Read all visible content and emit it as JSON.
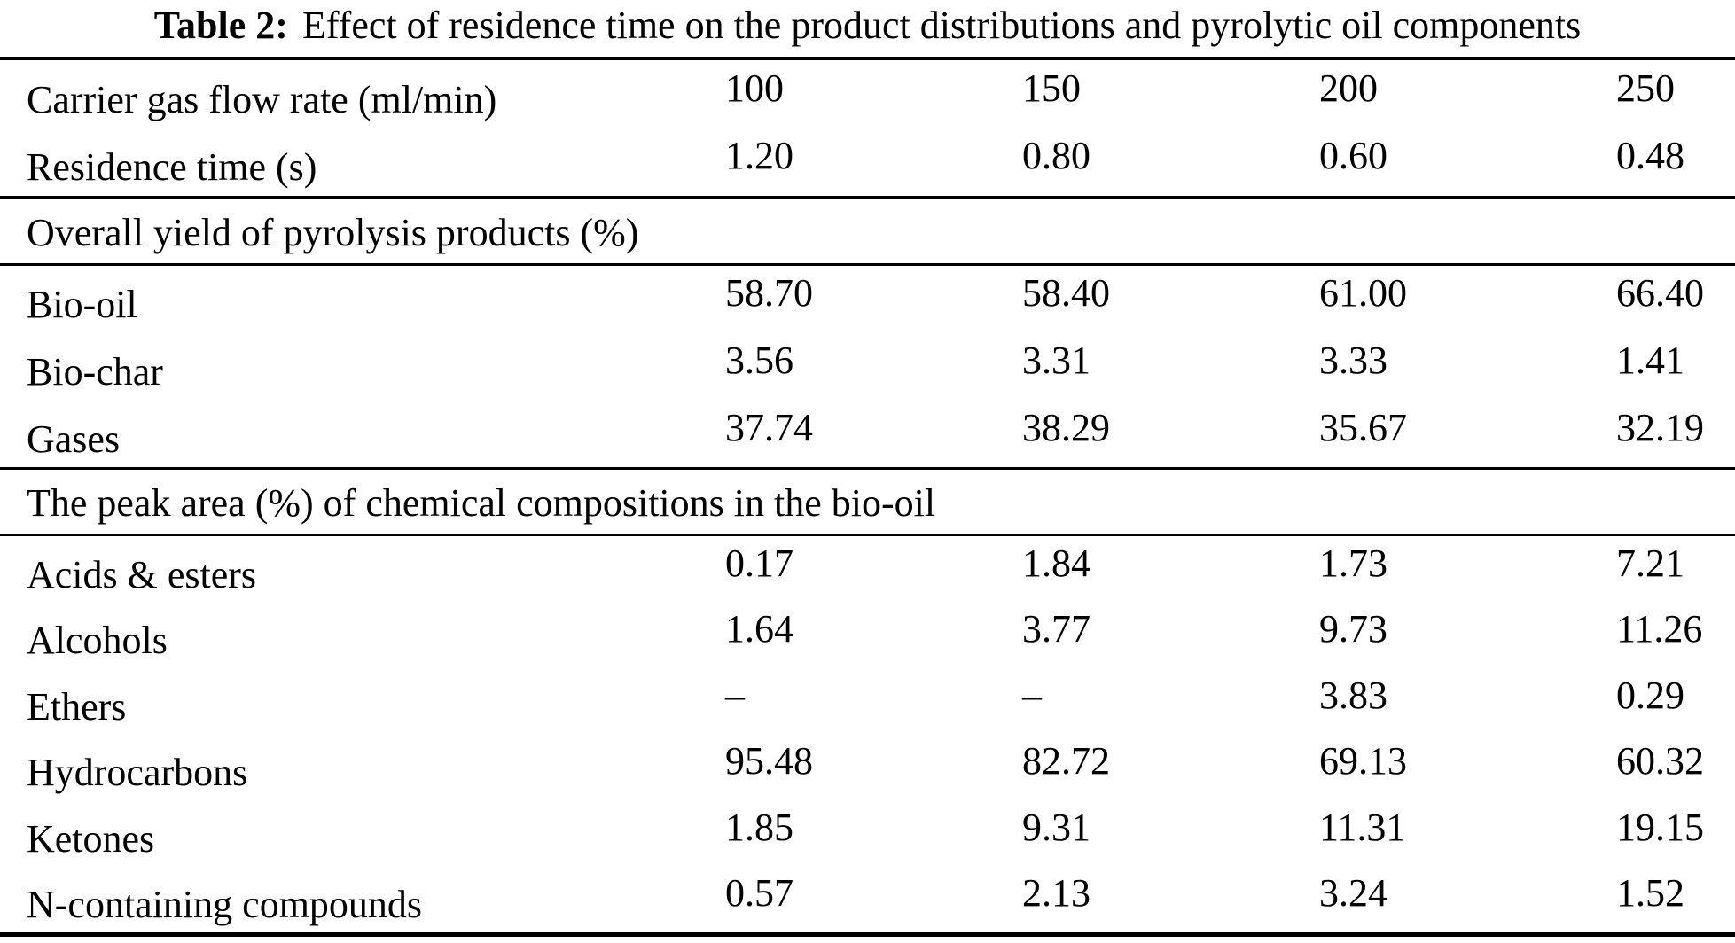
{
  "caption": {
    "label": "Table 2:",
    "text": "Effect of residence time on the product distributions and pyrolytic oil components"
  },
  "table": {
    "sections": [
      {
        "rows": [
          {
            "label": "Carrier gas flow rate (ml/min)",
            "values": [
              "100",
              "150",
              "200",
              "250"
            ]
          },
          {
            "label": "Residence time (s)",
            "values": [
              "1.20",
              "0.80",
              "0.60",
              "0.48"
            ]
          }
        ]
      },
      {
        "header": "Overall yield of pyrolysis products (%)",
        "rows": [
          {
            "label": "Bio-oil",
            "values": [
              "58.70",
              "58.40",
              "61.00",
              "66.40"
            ]
          },
          {
            "label": "Bio-char",
            "values": [
              "3.56",
              "3.31",
              "3.33",
              "1.41"
            ]
          },
          {
            "label": "Gases",
            "values": [
              "37.74",
              "38.29",
              "35.67",
              "32.19"
            ]
          }
        ]
      },
      {
        "header": "The peak area (%) of chemical compositions in the bio-oil",
        "rows": [
          {
            "label": "Acids & esters",
            "values": [
              "0.17",
              "1.84",
              "1.73",
              "7.21"
            ]
          },
          {
            "label": "Alcohols",
            "values": [
              "1.64",
              "3.77",
              "9.73",
              "11.26"
            ]
          },
          {
            "label": "Ethers",
            "values": [
              "–",
              "–",
              "3.83",
              "0.29"
            ]
          },
          {
            "label": "Hydrocarbons",
            "values": [
              "95.48",
              "82.72",
              "69.13",
              "60.32"
            ]
          },
          {
            "label": "Ketones",
            "values": [
              "1.85",
              "9.31",
              "11.31",
              "19.15"
            ]
          },
          {
            "label": "N-containing compounds",
            "values": [
              "0.57",
              "2.13",
              "3.24",
              "1.52"
            ]
          }
        ]
      }
    ],
    "colors": {
      "text": "#000000",
      "background": "#ffffff",
      "rule": "#000000"
    }
  }
}
